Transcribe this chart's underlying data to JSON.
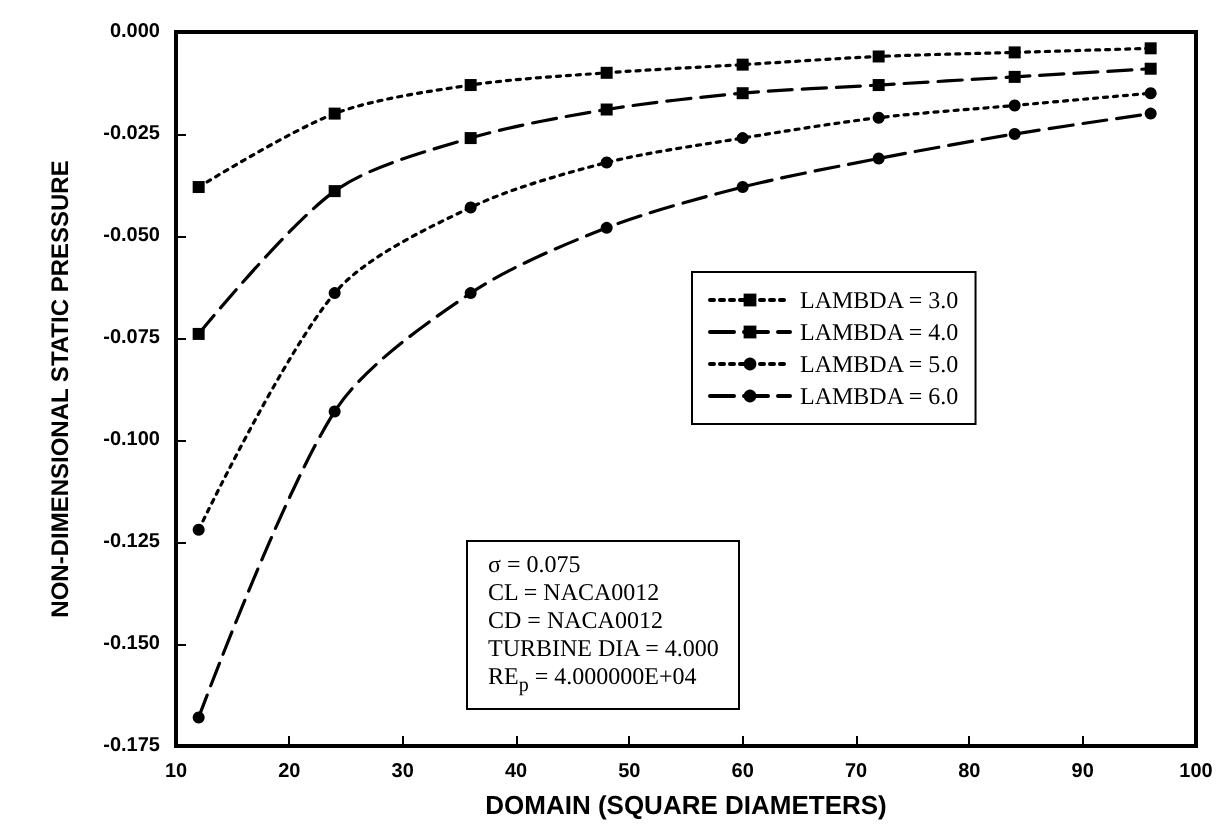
{
  "chart_data": {
    "type": "line",
    "xlabel": "DOMAIN (SQUARE DIAMETERS)",
    "ylabel": "NON-DIMENSIONAL STATIC PRESSURE",
    "x": [
      12,
      24,
      36,
      48,
      60,
      72,
      84,
      96
    ],
    "series": [
      {
        "name": "LAMBDA = 3.0",
        "color": "#000000",
        "marker": "square",
        "line_style": "dotted",
        "values": [
          -0.038,
          -0.02,
          -0.013,
          -0.01,
          -0.008,
          -0.006,
          -0.005,
          -0.004
        ]
      },
      {
        "name": "LAMBDA = 4.0",
        "color": "#000000",
        "marker": "square",
        "line_style": "dashed",
        "values": [
          -0.074,
          -0.039,
          -0.026,
          -0.019,
          -0.015,
          -0.013,
          -0.011,
          -0.009
        ]
      },
      {
        "name": "LAMBDA = 5.0",
        "color": "#000000",
        "marker": "circle",
        "line_style": "dotted",
        "values": [
          -0.122,
          -0.064,
          -0.043,
          -0.032,
          -0.026,
          -0.021,
          -0.018,
          -0.015
        ]
      },
      {
        "name": "LAMBDA = 6.0",
        "color": "#000000",
        "marker": "circle",
        "line_style": "dashed",
        "values": [
          -0.168,
          -0.093,
          -0.064,
          -0.048,
          -0.038,
          -0.031,
          -0.025,
          -0.02
        ]
      }
    ],
    "xlim": [
      10,
      100
    ],
    "xticks": [
      10,
      20,
      30,
      40,
      50,
      60,
      70,
      80,
      90,
      100
    ],
    "ylim": [
      -0.175,
      0
    ],
    "yticks": [
      -0.175,
      {
        "value": -0.15,
        "label": "-0.150"
      },
      -0.125,
      {
        "value": -0.1,
        "label": "-0.100"
      },
      -0.075,
      {
        "value": -0.05,
        "label": "-0.050"
      },
      -0.025,
      {
        "value": 0,
        "label": "0.000"
      }
    ],
    "grid": false,
    "legend": "right",
    "annotations": [
      "σ =  0.075",
      "CL = NACA0012",
      "CD = NACA0012",
      "TURBINE DIA = 4.000",
      "RE$_{p}$ =  4.000000E+04"
    ]
  }
}
